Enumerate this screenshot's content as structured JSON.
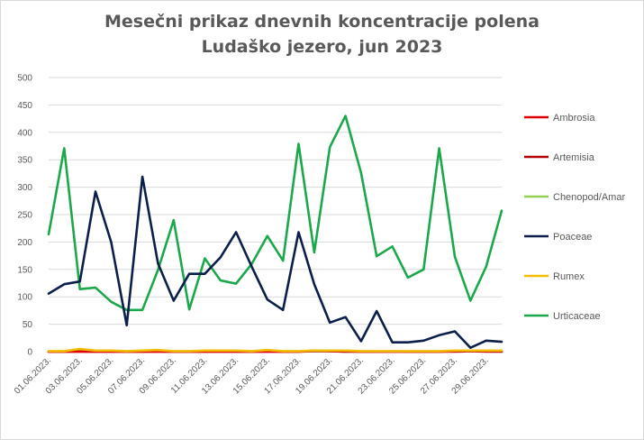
{
  "chart_data": {
    "type": "line",
    "title_lines": [
      "Mesečni prikaz dnevnih koncentracije polena",
      "Ludaško jezero, jun 2023"
    ],
    "xlabel": "",
    "ylabel": "",
    "ylim": [
      0,
      500
    ],
    "yticks": [
      0,
      50,
      100,
      150,
      200,
      250,
      300,
      350,
      400,
      450,
      500
    ],
    "grid": true,
    "legend_position": "right",
    "x": [
      "01.06.2023.",
      "02.06.2023.",
      "03.06.2023.",
      "04.06.2023.",
      "05.06.2023.",
      "06.06.2023.",
      "07.06.2023.",
      "08.06.2023.",
      "09.06.2023.",
      "10.06.2023.",
      "11.06.2023.",
      "12.06.2023.",
      "13.06.2023.",
      "14.06.2023.",
      "15.06.2023.",
      "16.06.2023.",
      "17.06.2023.",
      "18.06.2023.",
      "19.06.2023.",
      "20.06.2023.",
      "21.06.2023.",
      "22.06.2023.",
      "23.06.2023.",
      "24.06.2023.",
      "25.06.2023.",
      "26.06.2023.",
      "27.06.2023.",
      "28.06.2023.",
      "29.06.2023.",
      "30.06.2023."
    ],
    "xtick_labels": [
      "01.06.2023.",
      "03.06.2023.",
      "05.06.2023.",
      "07.06.2023.",
      "09.06.2023.",
      "11.06.2023.",
      "13.06.2023.",
      "15.06.2023.",
      "17.06.2023.",
      "19.06.2023.",
      "21.06.2023.",
      "23.06.2023.",
      "25.06.2023.",
      "27.06.2023.",
      "29.06.2023."
    ],
    "series": [
      {
        "name": "Ambrosia",
        "color": "#e00000",
        "values": [
          0,
          0,
          0,
          0,
          0,
          0,
          0,
          0,
          0,
          0,
          0,
          0,
          0,
          0,
          0,
          0,
          0,
          2,
          1,
          1,
          0,
          0,
          0,
          0,
          0,
          0,
          1,
          2,
          1,
          1
        ]
      },
      {
        "name": "Artemisia",
        "color": "#b00000",
        "values": [
          0,
          0,
          0,
          0,
          0,
          0,
          0,
          0,
          0,
          0,
          0,
          0,
          0,
          0,
          0,
          0,
          0,
          1,
          1,
          0,
          0,
          0,
          0,
          0,
          0,
          0,
          0,
          1,
          0,
          0
        ]
      },
      {
        "name": "Chenopod/Amar",
        "color": "#92d050",
        "values": [
          0,
          0,
          1,
          0,
          1,
          0,
          0,
          1,
          0,
          0,
          0,
          1,
          0,
          0,
          1,
          0,
          0,
          1,
          1,
          0,
          0,
          0,
          1,
          0,
          0,
          0,
          1,
          1,
          1,
          0
        ]
      },
      {
        "name": "Poaceae",
        "color": "#0c1f4a",
        "values": [
          106,
          123,
          128,
          292,
          200,
          48,
          319,
          161,
          93,
          142,
          142,
          172,
          218,
          155,
          95,
          76,
          218,
          123,
          53,
          63,
          19,
          74,
          17,
          17,
          20,
          30,
          37,
          7,
          20,
          18
        ]
      },
      {
        "name": "Rumex",
        "color": "#f0c000",
        "values": [
          1,
          1,
          5,
          2,
          2,
          1,
          2,
          3,
          1,
          1,
          2,
          2,
          2,
          1,
          3,
          1,
          1,
          2,
          2,
          2,
          1,
          1,
          1,
          1,
          1,
          1,
          2,
          2,
          2,
          2
        ]
      },
      {
        "name": "Urticaceae",
        "color": "#1aa84a",
        "values": [
          214,
          371,
          114,
          117,
          91,
          76,
          76,
          149,
          240,
          77,
          170,
          130,
          124,
          160,
          211,
          166,
          379,
          181,
          373,
          430,
          326,
          174,
          192,
          135,
          150,
          371,
          173,
          93,
          155,
          257
        ]
      }
    ]
  }
}
